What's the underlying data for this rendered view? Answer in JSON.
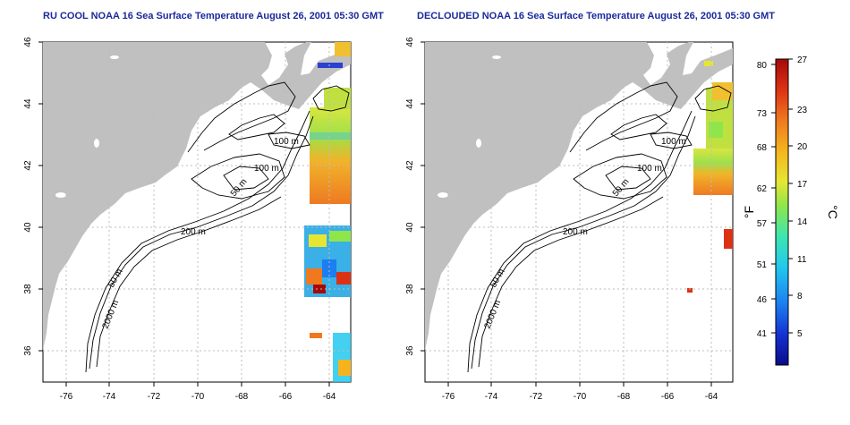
{
  "panels": [
    {
      "title": "RU COOL NOAA 16 Sea Surface Temperature August 26, 2001 05:30 GMT",
      "x_ticks": [
        "-76",
        "-74",
        "-72",
        "-70",
        "-68",
        "-66",
        "-64"
      ],
      "y_ticks": [
        "36",
        "38",
        "40",
        "42",
        "44",
        "46"
      ],
      "contour_labels": [
        "100 m",
        "100 m",
        "50 m",
        "200 m",
        "50 m",
        "2000 m"
      ]
    },
    {
      "title": "DECLOUDED NOAA 16 Sea Surface Temperature August 26, 2001 05:30 GMT",
      "x_ticks": [
        "-76",
        "-74",
        "-72",
        "-70",
        "-68",
        "-66",
        "-64"
      ],
      "y_ticks": [
        "36",
        "38",
        "40",
        "42",
        "44",
        "46"
      ],
      "contour_labels": [
        "100 m",
        "100 m",
        "50 m",
        "200 m",
        "50 m",
        "2000 m"
      ]
    }
  ],
  "colorbar": {
    "fahrenheit_ticks": [
      "80",
      "73",
      "68",
      "62",
      "57",
      "51",
      "46",
      "41"
    ],
    "celsius_ticks": [
      "27",
      "23",
      "20",
      "17",
      "14",
      "11",
      "8",
      "5"
    ],
    "fahrenheit_unit": "°F",
    "celsius_unit": "°C",
    "colors": [
      "#0b0b8a",
      "#1432d2",
      "#1c7ef0",
      "#22c8ee",
      "#3ce6b0",
      "#8ee64a",
      "#e6e632",
      "#f5b41e",
      "#f0781e",
      "#dc3214",
      "#a50a0a"
    ]
  },
  "colors": {
    "land": "#c0c0c0",
    "title": "#1a2a9c",
    "grid": "#bdbdbd"
  }
}
